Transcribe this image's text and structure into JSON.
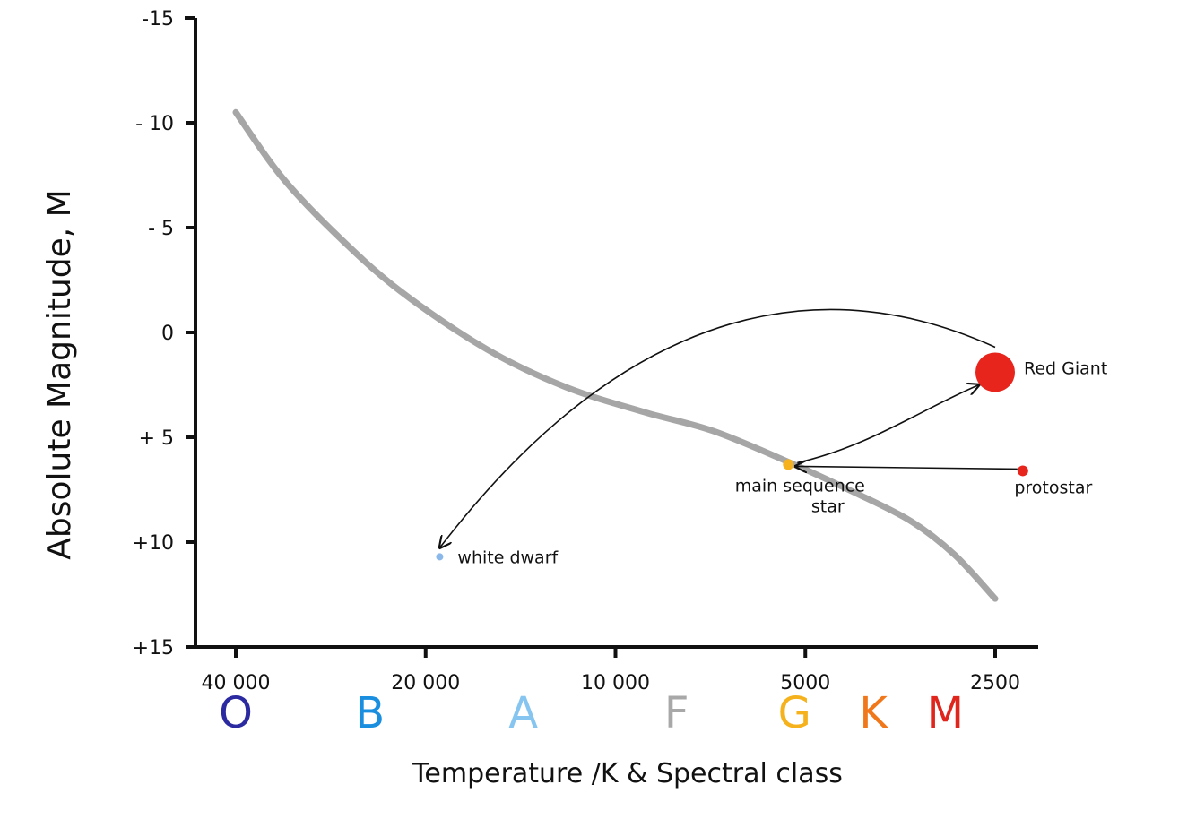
{
  "chart_data": {
    "type": "scatter",
    "title": "",
    "xlabel": "Temperature /K  & Spectral class",
    "ylabel": "Absolute Magnitude, M",
    "x_scale": "log",
    "x_reversed": true,
    "y_reversed": true,
    "ylim": [
      -15,
      15
    ],
    "y_ticks": [
      {
        "value": -15,
        "label": "-15"
      },
      {
        "value": -10,
        "label": "- 10"
      },
      {
        "value": -5,
        "label": "- 5"
      },
      {
        "value": 0,
        "label": "0"
      },
      {
        "value": 5,
        "label": "+ 5"
      },
      {
        "value": 10,
        "label": "+10"
      },
      {
        "value": 15,
        "label": "+15"
      }
    ],
    "x_ticks": [
      {
        "value": 40000,
        "label": "40 000"
      },
      {
        "value": 20000,
        "label": "20 000"
      },
      {
        "value": 10000,
        "label": "10 000"
      },
      {
        "value": 5000,
        "label": "5000"
      },
      {
        "value": 2500,
        "label": "2500"
      }
    ],
    "spectral_classes": [
      {
        "label": "O",
        "temp": 40000,
        "color": "#2b2aa0"
      },
      {
        "label": "B",
        "temp": 24500,
        "color": "#1a8fe0"
      },
      {
        "label": "A",
        "temp": 14000,
        "color": "#86c5f0"
      },
      {
        "label": "F",
        "temp": 8000,
        "color": "#a8a8a8"
      },
      {
        "label": "G",
        "temp": 5200,
        "color": "#f5b21c"
      },
      {
        "label": "K",
        "temp": 3900,
        "color": "#f0771a"
      },
      {
        "label": "M",
        "temp": 3000,
        "color": "#e0261c"
      }
    ],
    "main_sequence": {
      "color": "#a6a6a6",
      "points": [
        [
          40000,
          -10.5
        ],
        [
          34000,
          -7.5
        ],
        [
          28000,
          -4.8
        ],
        [
          22000,
          -2.0
        ],
        [
          16000,
          0.8
        ],
        [
          12000,
          2.6
        ],
        [
          9000,
          3.8
        ],
        [
          7000,
          4.7
        ],
        [
          5300,
          6.2
        ],
        [
          4200,
          7.6
        ],
        [
          3400,
          9.0
        ],
        [
          2900,
          10.6
        ],
        [
          2500,
          12.7
        ]
      ]
    },
    "stars": [
      {
        "name": "Red Giant",
        "temp": 2500,
        "mag": 1.9,
        "color": "#e8251c",
        "size": 22
      },
      {
        "name": "protostar",
        "temp": 2260,
        "mag": 6.6,
        "color": "#e8251c",
        "size": 6
      },
      {
        "name": "main sequence star",
        "temp": 5320,
        "mag": 6.3,
        "color": "#f5b21c",
        "size": 6
      },
      {
        "name": "white dwarf",
        "temp": 19000,
        "mag": 10.7,
        "color": "#8ab8ea",
        "size": 4
      }
    ],
    "grid": false,
    "legend": "none"
  }
}
